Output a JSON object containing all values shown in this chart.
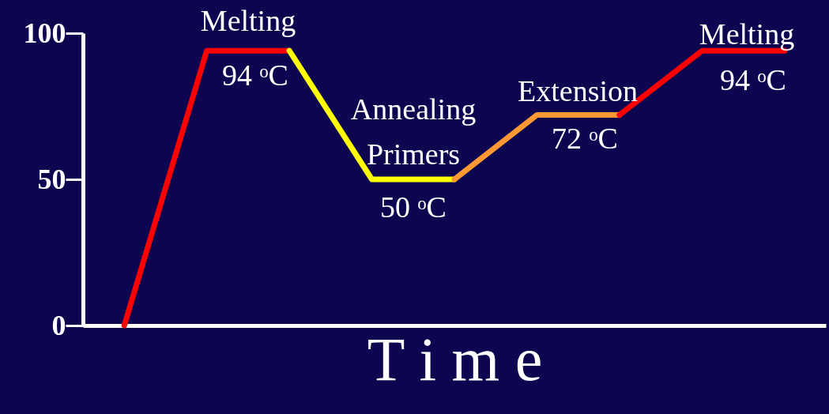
{
  "chart_data": {
    "type": "line",
    "xlabel": "T i m e",
    "categories": [
      null,
      null,
      null,
      null,
      null,
      null,
      null,
      null,
      null
    ],
    "series": [
      {
        "color": "#ff0000",
        "values": [
          0,
          94,
          94,
          null,
          null,
          null,
          null,
          null,
          null
        ]
      },
      {
        "color": "#ffff00",
        "values": [
          null,
          null,
          94,
          50,
          50,
          null,
          null,
          null,
          null
        ]
      },
      {
        "color": "#ff9933",
        "values": [
          null,
          null,
          null,
          null,
          50,
          72,
          72,
          null,
          null
        ]
      },
      {
        "color": "#ff0000",
        "values": [
          null,
          null,
          null,
          null,
          null,
          null,
          72,
          94,
          94
        ]
      }
    ],
    "ylim": [
      0,
      100
    ],
    "yticks": [
      0,
      50,
      100
    ],
    "tick_labels": "y",
    "grid": false,
    "marker": "none",
    "line_style": "solid",
    "annotations": [
      "Melting",
      "94 ᵒC",
      "Annealing\nPrimers",
      "50 ᵒC",
      "Extension",
      "72 ᵒC",
      "Melting",
      "94 ᵒC"
    ]
  }
}
